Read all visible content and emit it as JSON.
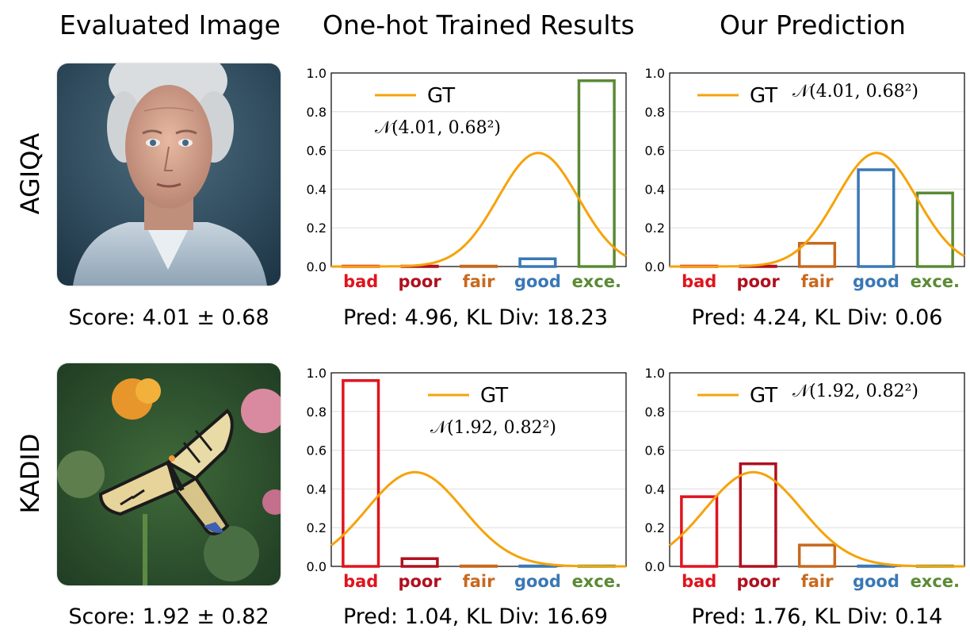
{
  "column_titles": {
    "image": "Evaluated Image",
    "onehot": "One-hot Trained Results",
    "ours": "Our Prediction"
  },
  "rows": [
    {
      "label": "AGIQA",
      "image_desc_icon": "elderly-man-portrait",
      "score_caption": "Score: 4.01 ± 0.68",
      "onehot_caption": "Pred: 4.96, KL Div: 18.23",
      "ours_caption": "Pred: 4.24, KL Div: 0.06"
    },
    {
      "label": "KADID",
      "image_desc_icon": "butterfly-photo",
      "score_caption": "Score: 1.92 ± 0.82",
      "onehot_caption": "Pred: 1.04, KL Div: 16.69",
      "ours_caption": "Pred: 1.76, KL Div: 0.14"
    }
  ],
  "chart_data": [
    {
      "type": "bar",
      "id": "agiqa-onehot",
      "categories": [
        "bad",
        "poor",
        "fair",
        "good",
        "exce."
      ],
      "category_colors": [
        "#e0141e",
        "#b0101e",
        "#c8691f",
        "#3a78b5",
        "#5a8a35"
      ],
      "values": [
        0.0,
        0.0,
        0.0,
        0.04,
        0.96
      ],
      "gaussian": {
        "mean": 4.01,
        "std": 0.68
      },
      "legend_label": "GT",
      "formula": "𝒩(4.01, 0.68²)",
      "ylim": [
        0,
        1.0
      ],
      "yticks": [
        "0.0",
        "0.2",
        "0.4",
        "0.6",
        "0.8",
        "1.0"
      ]
    },
    {
      "type": "bar",
      "id": "agiqa-ours",
      "categories": [
        "bad",
        "poor",
        "fair",
        "good",
        "exce."
      ],
      "category_colors": [
        "#e0141e",
        "#b0101e",
        "#c8691f",
        "#3a78b5",
        "#5a8a35"
      ],
      "values": [
        0.0,
        0.0,
        0.12,
        0.5,
        0.38
      ],
      "gaussian": {
        "mean": 4.01,
        "std": 0.68
      },
      "legend_label": "GT",
      "formula": "𝒩(4.01, 0.68²)",
      "ylim": [
        0,
        1.0
      ],
      "yticks": [
        "0.0",
        "0.2",
        "0.4",
        "0.6",
        "0.8",
        "1.0"
      ]
    },
    {
      "type": "bar",
      "id": "kadid-onehot",
      "categories": [
        "bad",
        "poor",
        "fair",
        "good",
        "exce."
      ],
      "category_colors": [
        "#e0141e",
        "#b0101e",
        "#c8691f",
        "#3a78b5",
        "#5a8a35"
      ],
      "values": [
        0.96,
        0.04,
        0.0,
        0.0,
        0.0
      ],
      "gaussian": {
        "mean": 1.92,
        "std": 0.82
      },
      "legend_label": "GT",
      "formula": "𝒩(1.92, 0.82²)",
      "ylim": [
        0,
        1.0
      ],
      "yticks": [
        "0.0",
        "0.2",
        "0.4",
        "0.6",
        "0.8",
        "1.0"
      ]
    },
    {
      "type": "bar",
      "id": "kadid-ours",
      "categories": [
        "bad",
        "poor",
        "fair",
        "good",
        "exce."
      ],
      "category_colors": [
        "#e0141e",
        "#b0101e",
        "#c8691f",
        "#3a78b5",
        "#5a8a35"
      ],
      "values": [
        0.36,
        0.53,
        0.11,
        0.0,
        0.0
      ],
      "gaussian": {
        "mean": 1.92,
        "std": 0.82
      },
      "legend_label": "GT",
      "formula": "𝒩(1.92, 0.82²)",
      "ylim": [
        0,
        1.0
      ],
      "yticks": [
        "0.0",
        "0.2",
        "0.4",
        "0.6",
        "0.8",
        "1.0"
      ]
    }
  ],
  "colors": {
    "gaussian": "#f5a30a",
    "grid": "#dddddd",
    "axis": "#000000"
  }
}
